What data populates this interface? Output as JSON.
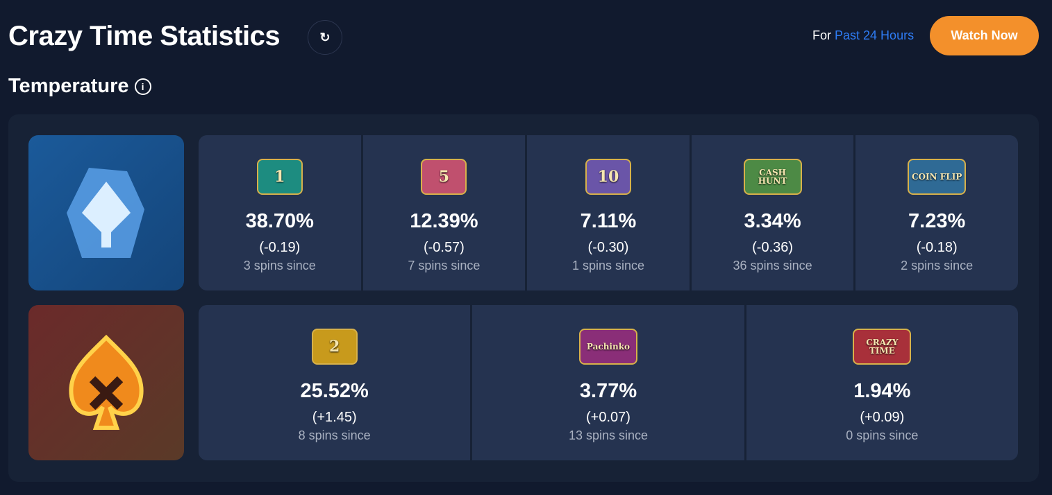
{
  "header": {
    "title": "Crazy Time Statistics",
    "period_prefix": "For",
    "period_value": "Past 24 Hours",
    "watch_label": "Watch Now"
  },
  "section": {
    "title": "Temperature"
  },
  "colors": {
    "accent": "#2f7df6",
    "watch": "#f3902b",
    "cold": "#1b5a9a",
    "hot": "#6b2a2a"
  },
  "cold": [
    {
      "name": "1",
      "label": "1",
      "pct": "38.70%",
      "change": "(-0.19)",
      "since": "3 spins since",
      "color": "#1d8c80"
    },
    {
      "name": "5",
      "label": "5",
      "pct": "12.39%",
      "change": "(-0.57)",
      "since": "7 spins since",
      "color": "#c0506e"
    },
    {
      "name": "10",
      "label": "10",
      "pct": "7.11%",
      "change": "(-0.30)",
      "since": "1 spins since",
      "color": "#6a55a8"
    },
    {
      "name": "cash-hunt",
      "label": "CASH HUNT",
      "pct": "3.34%",
      "change": "(-0.36)",
      "since": "36 spins since",
      "color": "#4d8a45"
    },
    {
      "name": "coin-flip",
      "label": "COIN FLIP",
      "pct": "7.23%",
      "change": "(-0.18)",
      "since": "2 spins since",
      "color": "#2f6a95"
    }
  ],
  "hot": [
    {
      "name": "2",
      "label": "2",
      "pct": "25.52%",
      "change": "(+1.45)",
      "since": "8 spins since",
      "color": "#c89a1c"
    },
    {
      "name": "pachinko",
      "label": "Pachinko",
      "pct": "3.77%",
      "change": "(+0.07)",
      "since": "13 spins since",
      "color": "#8a2e78"
    },
    {
      "name": "crazy-time",
      "label": "CRAZY TIME",
      "pct": "1.94%",
      "change": "(+0.09)",
      "since": "0 spins since",
      "color": "#a8303a"
    }
  ]
}
